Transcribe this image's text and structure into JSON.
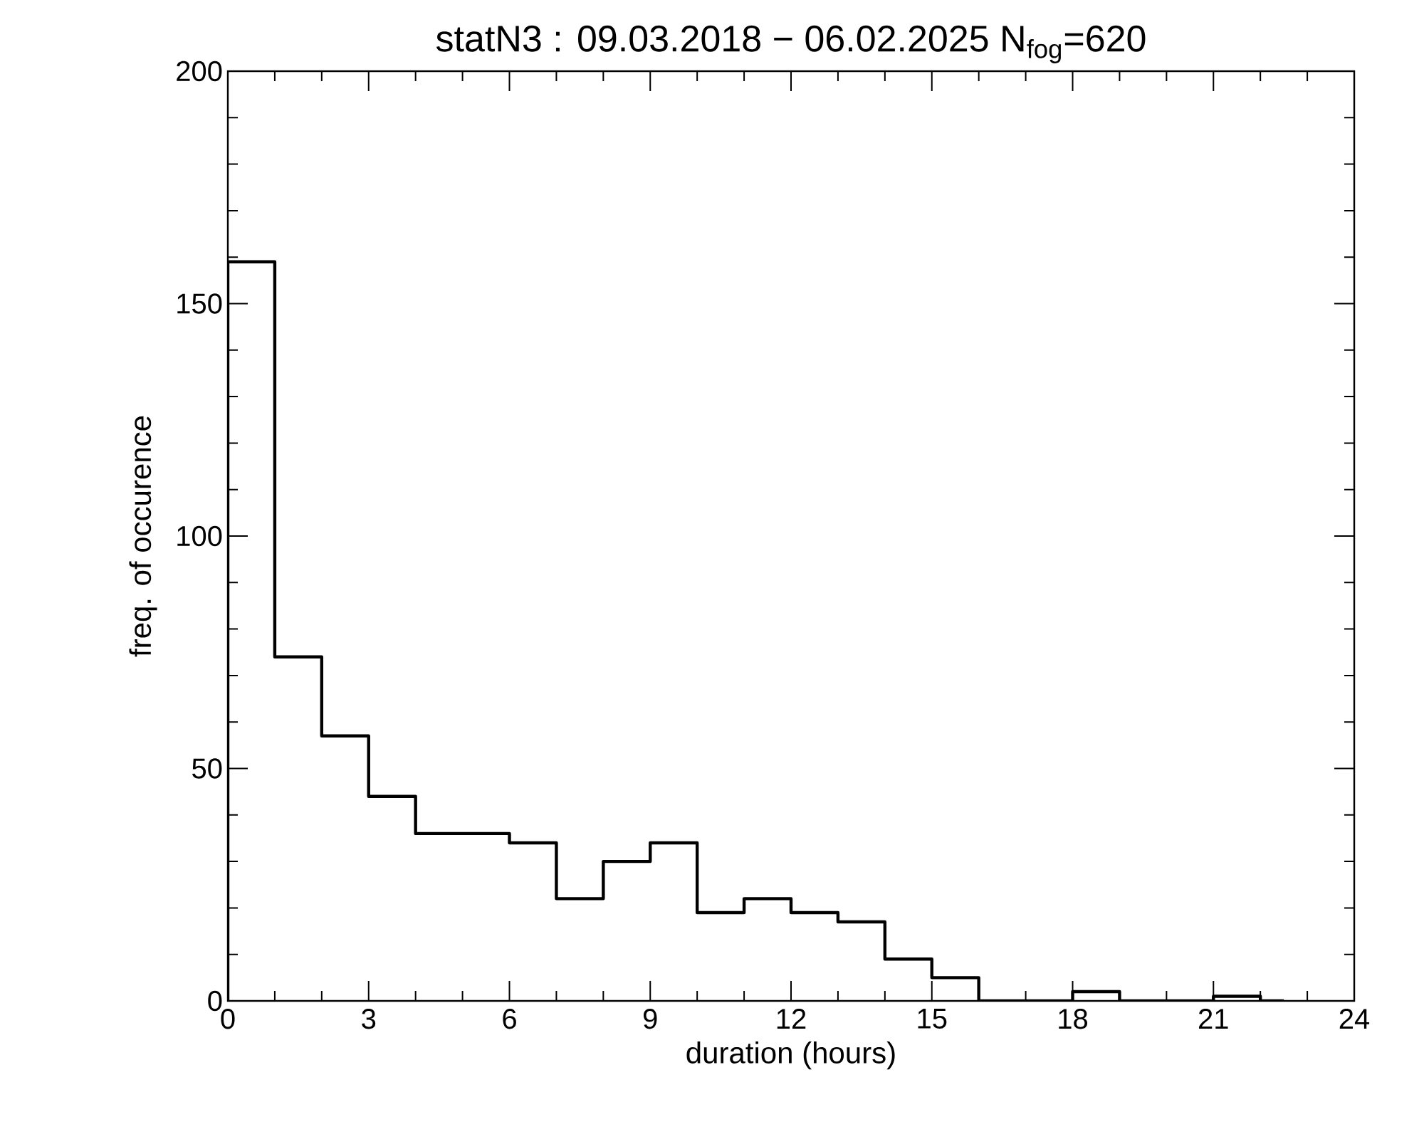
{
  "chart_data": {
    "type": "histogram",
    "title": "statN3 : 09.03.2018 − 06.02.2025 N$_{fog}$=620",
    "xlabel": "duration (hours)",
    "ylabel": "freq. of occurence",
    "bins": [
      0,
      1,
      2,
      3,
      4,
      5,
      6,
      7,
      8,
      9,
      10,
      11,
      12,
      13,
      14,
      15,
      16,
      17,
      18,
      19,
      20,
      21,
      22,
      22.5
    ],
    "values": [
      159,
      74,
      57,
      44,
      36,
      36,
      34,
      22,
      30,
      34,
      19,
      22,
      19,
      17,
      9,
      5,
      0,
      0,
      2,
      0,
      0,
      1,
      0
    ],
    "color": "#000000",
    "xlim": [
      0,
      24
    ],
    "ylim": [
      0,
      200
    ],
    "xticks": [
      0,
      3,
      6,
      9,
      12,
      15,
      18,
      21,
      24
    ],
    "yticks": [
      0,
      50,
      100,
      150,
      200
    ]
  }
}
